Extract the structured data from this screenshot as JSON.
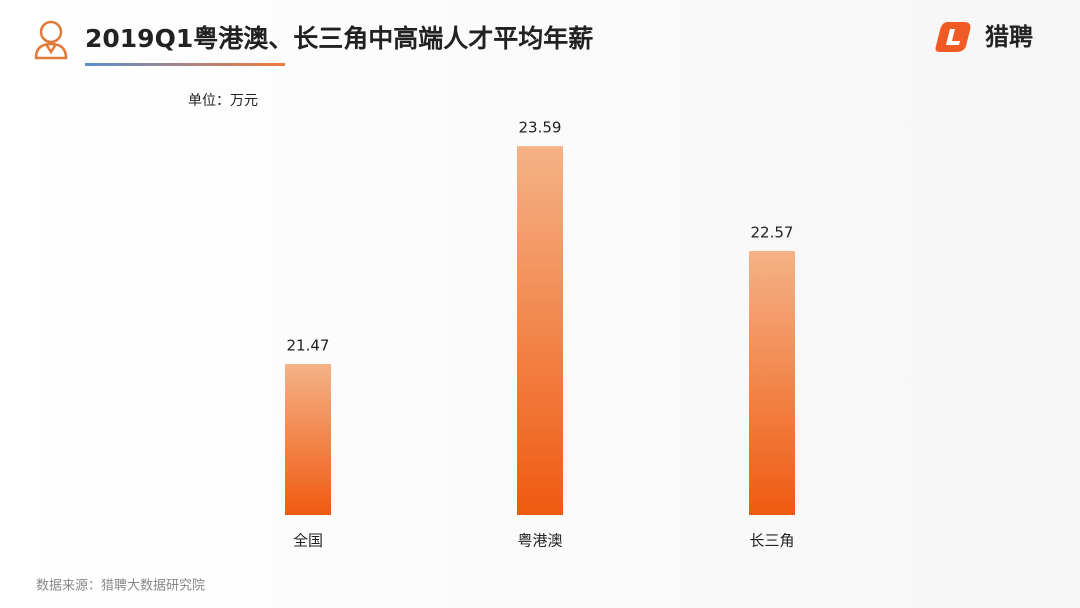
{
  "logo_text": "猎聘",
  "chart_data": {
    "type": "bar",
    "title": "2019Q1粤港澳、长三角中高端人才平均年薪",
    "unit_label": "单位：万元",
    "source": "数据来源：猎聘大数据研究院",
    "categories": [
      "全国",
      "粤港澳",
      "长三角"
    ],
    "values": [
      21.47,
      23.59,
      22.57
    ],
    "color": [
      "#f5b287",
      "#ef5a10"
    ],
    "ylim": [
      20,
      24
    ],
    "grid": false
  }
}
